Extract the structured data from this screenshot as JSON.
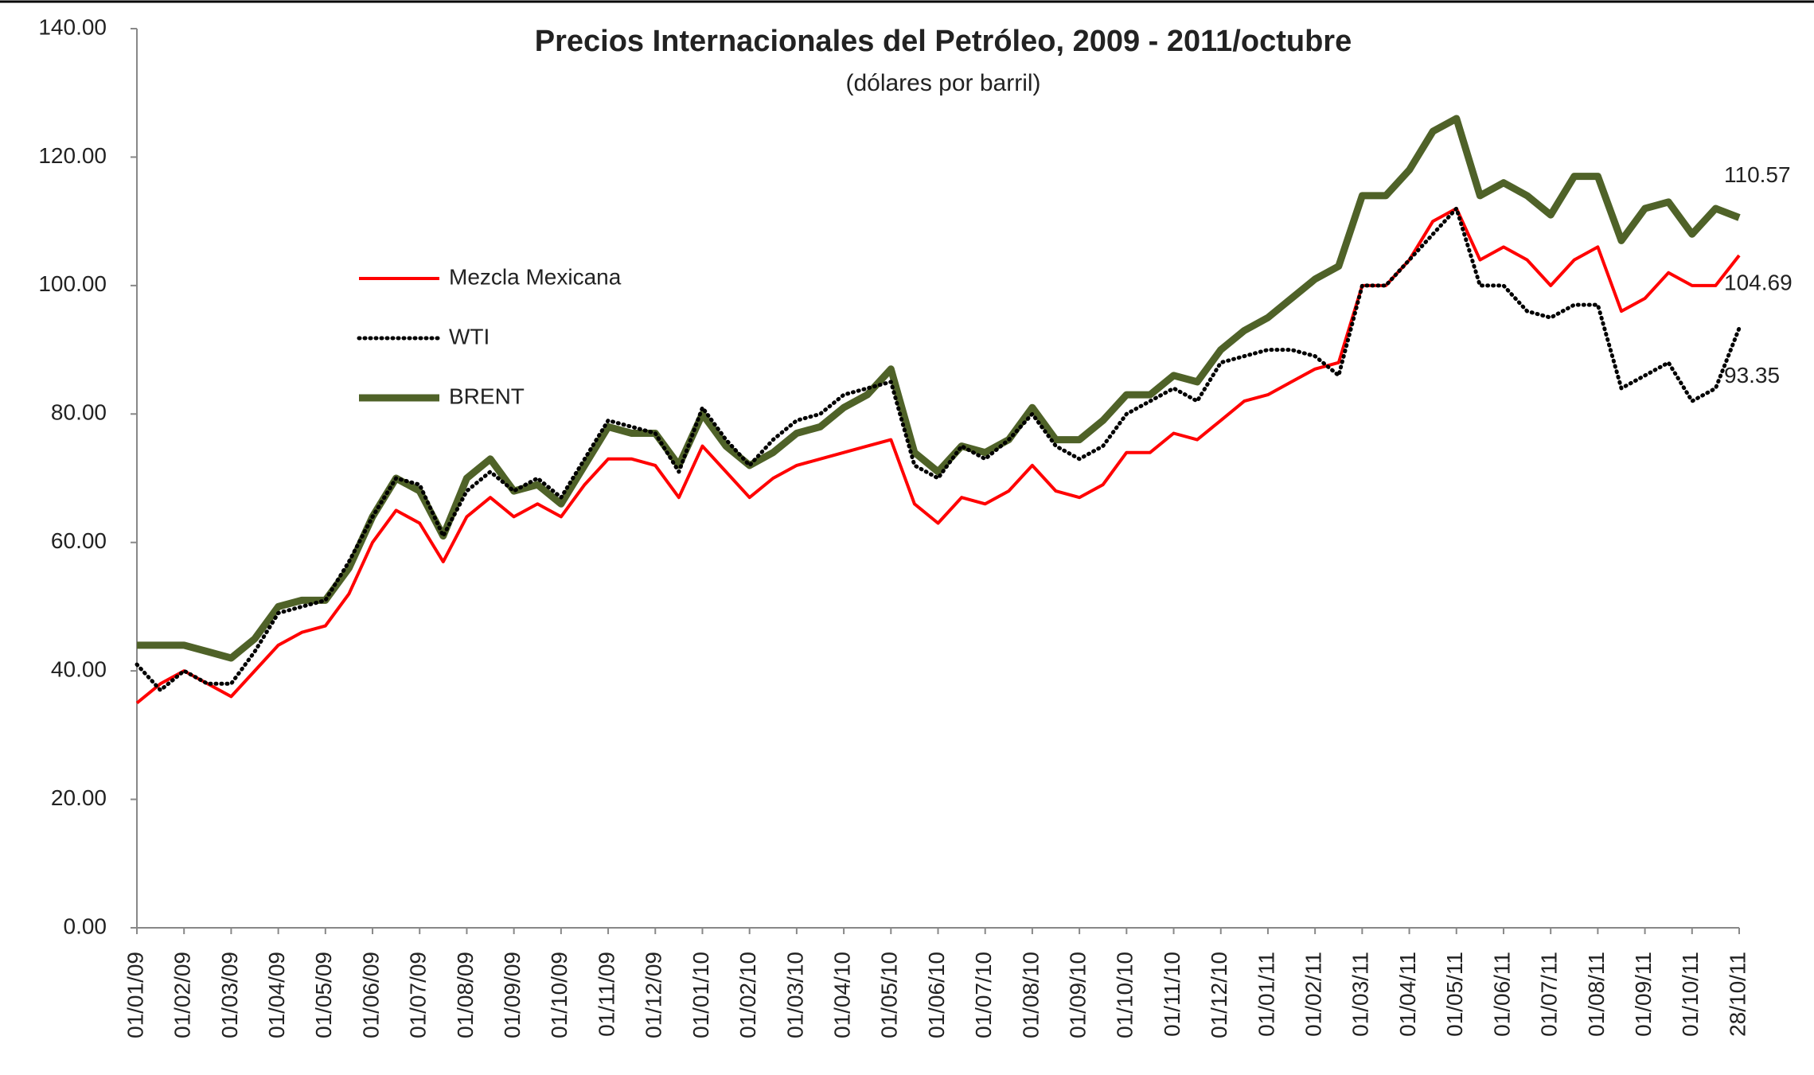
{
  "chart_data": {
    "type": "line",
    "title": "Precios Internacionales del Petróleo, 2009 - 2011/octubre",
    "subtitle": "(dólares por barril)",
    "categories": [
      "01/01/09",
      null,
      "01/02/09",
      null,
      "01/03/09",
      null,
      "01/04/09",
      null,
      "01/05/09",
      null,
      "01/06/09",
      null,
      "01/07/09",
      null,
      "01/08/09",
      null,
      "01/09/09",
      null,
      "01/10/09",
      null,
      "01/11/09",
      null,
      "01/12/09",
      null,
      "01/01/10",
      null,
      "01/02/10",
      null,
      "01/03/10",
      null,
      "01/04/10",
      null,
      "01/05/10",
      null,
      "01/06/10",
      null,
      "01/07/10",
      null,
      "01/08/10",
      null,
      "01/09/10",
      null,
      "01/10/10",
      null,
      "01/11/10",
      null,
      "01/12/10",
      null,
      "01/01/11",
      null,
      "01/02/11",
      null,
      "01/03/11",
      null,
      "01/04/11",
      null,
      "01/05/11",
      null,
      "01/06/11",
      null,
      "01/07/11",
      null,
      "01/08/11",
      null,
      "01/09/11",
      null,
      "01/10/11",
      null,
      "28/10/11"
    ],
    "series": [
      {
        "name": "Mezcla Mexicana",
        "color": "#ff0000",
        "style": "solid",
        "values": [
          35,
          38,
          40,
          38,
          36,
          40,
          44,
          46,
          47,
          52,
          60,
          65,
          63,
          57,
          64,
          67,
          64,
          66,
          64,
          69,
          73,
          73,
          72,
          67,
          75,
          71,
          67,
          70,
          72,
          73,
          74,
          75,
          76,
          66,
          63,
          67,
          66,
          68,
          72,
          68,
          67,
          69,
          74,
          74,
          77,
          76,
          79,
          82,
          83,
          85,
          87,
          88,
          100,
          100,
          104,
          110,
          112,
          104,
          106,
          104,
          100,
          104,
          106,
          96,
          98,
          102,
          100,
          100,
          104.69
        ]
      },
      {
        "name": "WTI",
        "color": "#000000",
        "style": "dotted",
        "values": [
          41,
          37,
          40,
          38,
          38,
          43,
          49,
          50,
          51,
          57,
          64,
          70,
          69,
          61,
          68,
          71,
          68,
          70,
          67,
          73,
          79,
          78,
          77,
          71,
          81,
          76,
          72,
          76,
          79,
          80,
          83,
          84,
          85,
          72,
          70,
          75,
          73,
          76,
          80,
          75,
          73,
          75,
          80,
          82,
          84,
          82,
          88,
          89,
          90,
          90,
          89,
          86,
          100,
          100,
          104,
          108,
          112,
          100,
          100,
          96,
          95,
          97,
          97,
          84,
          86,
          88,
          82,
          84,
          93.35
        ]
      },
      {
        "name": "BRENT",
        "color": "#4f6228",
        "style": "thick",
        "values": [
          44,
          44,
          44,
          43,
          42,
          45,
          50,
          51,
          51,
          56,
          64,
          70,
          68,
          61,
          70,
          73,
          68,
          69,
          66,
          72,
          78,
          77,
          77,
          72,
          80,
          75,
          72,
          74,
          77,
          78,
          81,
          83,
          87,
          74,
          71,
          75,
          74,
          76,
          81,
          76,
          76,
          79,
          83,
          83,
          86,
          85,
          90,
          93,
          95,
          98,
          101,
          103,
          114,
          114,
          118,
          124,
          126,
          114,
          116,
          114,
          111,
          117,
          117,
          107,
          112,
          113,
          108,
          112,
          110.57
        ]
      }
    ],
    "ylim": [
      0,
      140
    ],
    "yticks": [
      {
        "value": 0,
        "label": "0.00"
      },
      {
        "value": 20,
        "label": "20.00"
      },
      {
        "value": 40,
        "label": "40.00"
      },
      {
        "value": 60,
        "label": "60.00"
      },
      {
        "value": 80,
        "label": "80.00"
      },
      {
        "value": 100,
        "label": "100.00"
      },
      {
        "value": 120,
        "label": "120.00"
      },
      {
        "value": 140,
        "label": "140.00"
      }
    ],
    "grid": false
  }
}
